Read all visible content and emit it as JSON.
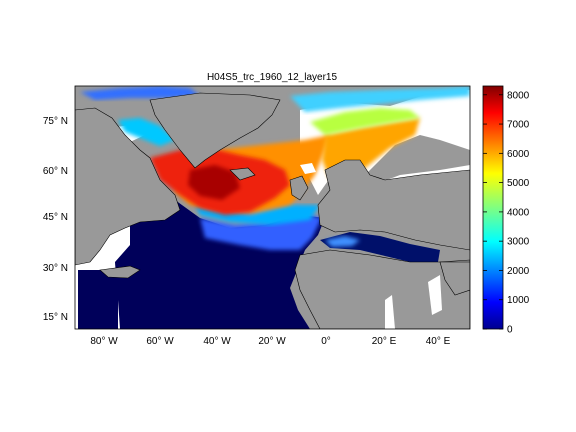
{
  "title": "H04S5_trc_1960_12_layer15",
  "lat_ticks": [
    "75° N",
    "60° N",
    "45° N",
    "30° N",
    "15° N"
  ],
  "lon_ticks": [
    "80° W",
    "60° W",
    "40° W",
    "20° W",
    "0°",
    "20° E",
    "40° E"
  ],
  "colorbar": {
    "ticks": [
      "8000",
      "7000",
      "6000",
      "5000",
      "4000",
      "3000",
      "2000",
      "1000",
      "0"
    ],
    "min": 0,
    "max": 8300,
    "colormap": "jet"
  },
  "colors": {
    "land": "#999999",
    "no_data": "#ffffff",
    "open_ocean": "#00005a"
  },
  "map_extent": {
    "lon": [
      -95,
      50
    ],
    "lat": [
      10,
      87
    ]
  }
}
